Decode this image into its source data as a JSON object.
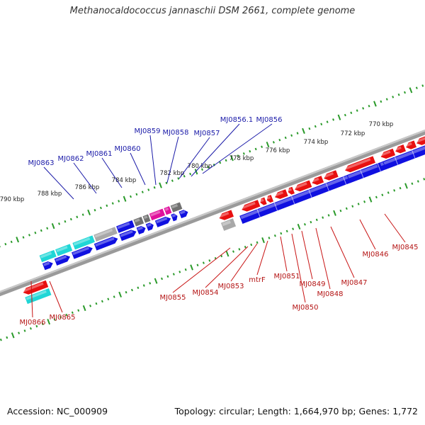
{
  "title": "Methanocaldococcus jannaschii DSM 2661, complete genome",
  "footer": {
    "accession": "Accession: NC_000909",
    "summary": "Topology: circular; Length: 1,664,970 bp; Genes: 1,772"
  },
  "colors": {
    "forward": "#1010e0",
    "reverse": "#e81010",
    "cyan": "#1fd6d6",
    "gray": "#a8a8a8",
    "magenta": "#e0109c",
    "pink": "#f07070",
    "dark_gray": "#707070",
    "tick": "#2a9a2a",
    "leader_top": "#1a1aa8",
    "leader_bottom": "#c81414"
  },
  "kbp_labels": [
    "770 kbp",
    "772 kbp",
    "774 kbp",
    "776 kbp",
    "778 kbp",
    "780 kbp",
    "782 kbp",
    "784 kbp",
    "786 kbp",
    "788 kbp",
    "790 kbp"
  ],
  "top_genes": [
    "MJ0863",
    "MJ0862",
    "MJ0861",
    "MJ0860",
    "MJ0859",
    "MJ0858",
    "MJ0857",
    "MJ0856.1",
    "MJ0856"
  ],
  "bottom_genes": [
    "MJ0845",
    "MJ0846",
    "MJ0847",
    "MJ0848",
    "MJ0849",
    "MJ0850",
    "MJ0851",
    "mtrF",
    "MJ0853",
    "MJ0854",
    "MJ0855",
    "MJ0865",
    "MJ0866"
  ]
}
